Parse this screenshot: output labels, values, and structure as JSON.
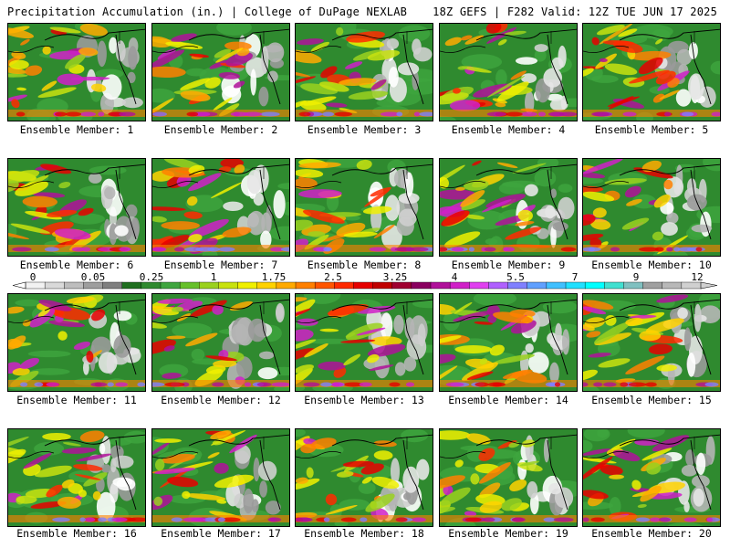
{
  "header": {
    "left": "Precipitation Accumulation (in.) | College of DuPage NEXLAB",
    "right": "18Z GEFS | F282 Valid: 12Z TUE JUN 17 2025"
  },
  "legend": {
    "ticks": [
      "0",
      "0.05",
      "0.25",
      "1",
      "1.75",
      "2.5",
      "3.25",
      "4",
      "5.5",
      "7",
      "9",
      "12"
    ],
    "colors": [
      "#f2f2f2",
      "#d9d9d9",
      "#bdbdbd",
      "#9e9e9e",
      "#7f7f7f",
      "#1f6f1f",
      "#2f8a2f",
      "#3fa53f",
      "#66c02a",
      "#9ad11e",
      "#c8e20f",
      "#f0f000",
      "#ffd200",
      "#ffaa00",
      "#ff8000",
      "#ff5500",
      "#ff2a00",
      "#e60000",
      "#c00000",
      "#a00030",
      "#8a0060",
      "#b0109a",
      "#d020c8",
      "#e040f0",
      "#b060ff",
      "#8080ff",
      "#60a0ff",
      "#40c0ff",
      "#20e0ff",
      "#00ffff",
      "#40e0d0",
      "#80c0c0",
      "#a0a0a0",
      "#b8b8b8",
      "#d0d0d0"
    ]
  },
  "members": [
    {
      "label": "Ensemble Member: 1"
    },
    {
      "label": "Ensemble Member: 2"
    },
    {
      "label": "Ensemble Member: 3"
    },
    {
      "label": "Ensemble Member: 4"
    },
    {
      "label": "Ensemble Member: 5"
    },
    {
      "label": "Ensemble Member: 6"
    },
    {
      "label": "Ensemble Member: 7"
    },
    {
      "label": "Ensemble Member: 8"
    },
    {
      "label": "Ensemble Member: 9"
    },
    {
      "label": "Ensemble Member: 10"
    },
    {
      "label": "Ensemble Member: 11"
    },
    {
      "label": "Ensemble Member: 12"
    },
    {
      "label": "Ensemble Member: 13"
    },
    {
      "label": "Ensemble Member: 14"
    },
    {
      "label": "Ensemble Member: 15"
    },
    {
      "label": "Ensemble Member: 16"
    },
    {
      "label": "Ensemble Member: 17"
    },
    {
      "label": "Ensemble Member: 18"
    },
    {
      "label": "Ensemble Member: 19"
    },
    {
      "label": "Ensemble Member: 20"
    }
  ]
}
